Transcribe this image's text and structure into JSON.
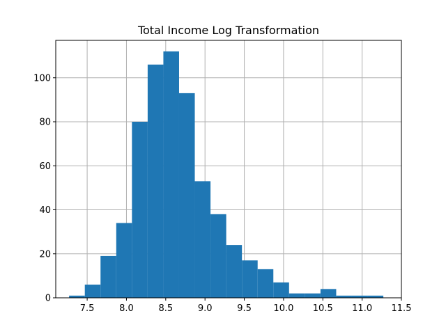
{
  "chart_data": {
    "type": "bar",
    "subtype": "histogram",
    "title": "Total Income Log Transformation",
    "xlabel": "",
    "ylabel": "",
    "xlim": [
      7.1,
      11.5
    ],
    "ylim": [
      0,
      117
    ],
    "xticks": [
      "7.5",
      "8.0",
      "8.5",
      "9.0",
      "9.5",
      "10.0",
      "10.5",
      "11.0",
      "11.5"
    ],
    "yticks": [
      "0",
      "20",
      "40",
      "60",
      "80",
      "100"
    ],
    "grid": true,
    "bar_color": "#1f77b4",
    "bins": [
      {
        "x0": 7.27,
        "x1": 7.47,
        "count": 1
      },
      {
        "x0": 7.47,
        "x1": 7.67,
        "count": 6
      },
      {
        "x0": 7.67,
        "x1": 7.87,
        "count": 19
      },
      {
        "x0": 7.87,
        "x1": 8.07,
        "count": 34
      },
      {
        "x0": 8.07,
        "x1": 8.27,
        "count": 80
      },
      {
        "x0": 8.27,
        "x1": 8.47,
        "count": 106
      },
      {
        "x0": 8.47,
        "x1": 8.67,
        "count": 112
      },
      {
        "x0": 8.67,
        "x1": 8.87,
        "count": 93
      },
      {
        "x0": 8.87,
        "x1": 9.07,
        "count": 53
      },
      {
        "x0": 9.07,
        "x1": 9.27,
        "count": 38
      },
      {
        "x0": 9.27,
        "x1": 9.47,
        "count": 24
      },
      {
        "x0": 9.47,
        "x1": 9.67,
        "count": 17
      },
      {
        "x0": 9.67,
        "x1": 9.87,
        "count": 13
      },
      {
        "x0": 9.87,
        "x1": 10.07,
        "count": 7
      },
      {
        "x0": 10.07,
        "x1": 10.27,
        "count": 2
      },
      {
        "x0": 10.27,
        "x1": 10.47,
        "count": 2
      },
      {
        "x0": 10.47,
        "x1": 10.67,
        "count": 4
      },
      {
        "x0": 10.67,
        "x1": 10.87,
        "count": 1
      },
      {
        "x0": 10.87,
        "x1": 11.07,
        "count": 1
      },
      {
        "x0": 11.07,
        "x1": 11.27,
        "count": 1
      }
    ]
  }
}
